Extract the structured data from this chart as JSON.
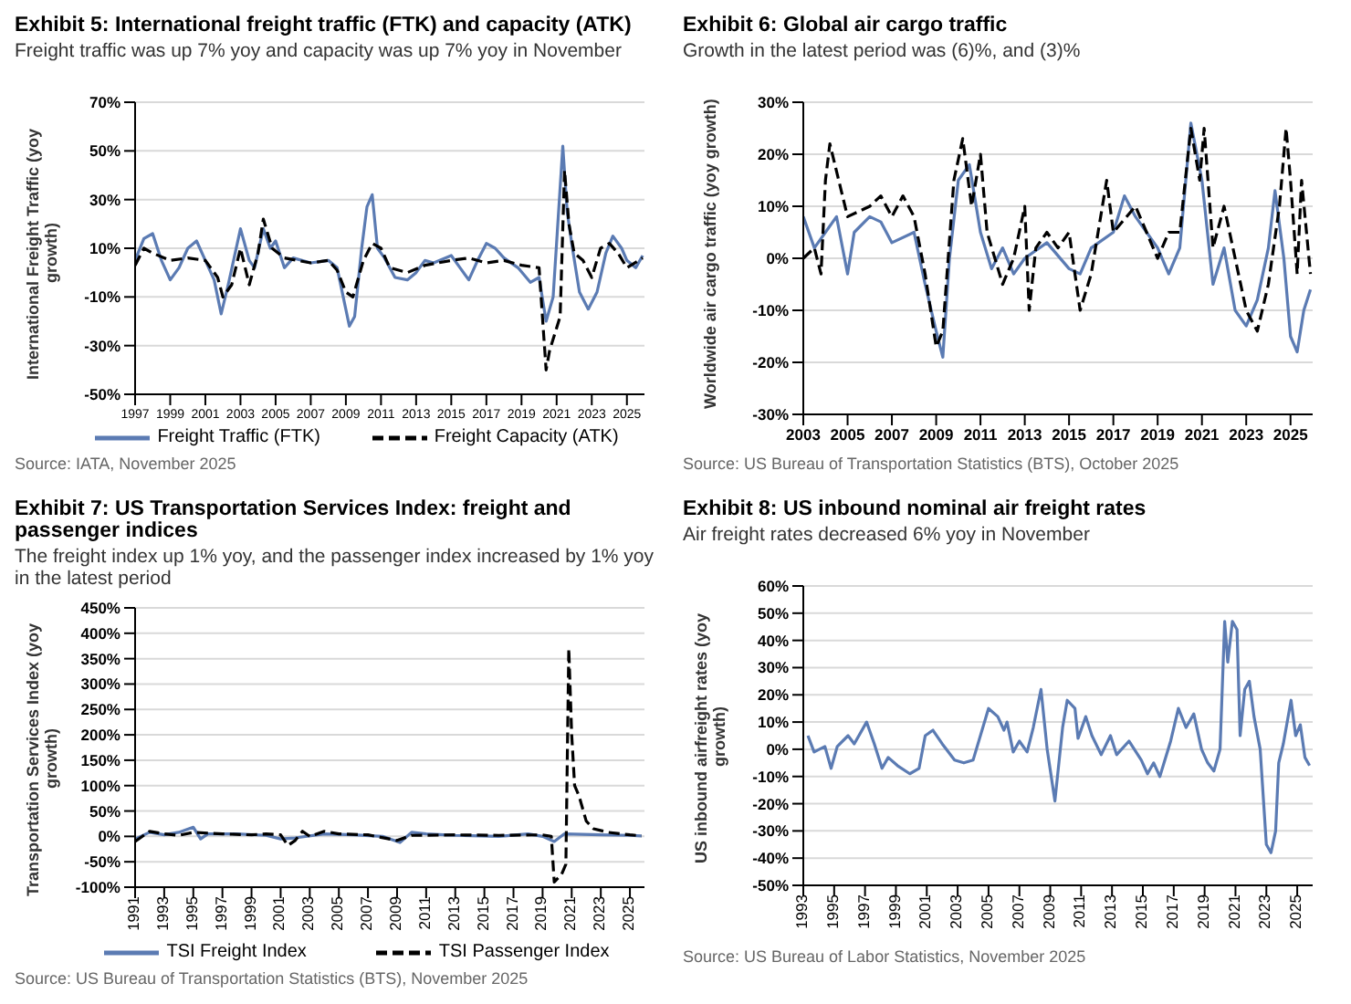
{
  "chart_data": [
    {
      "type": "line",
      "title": "Exhibit 5: International freight traffic (FTK) and capacity (ATK)",
      "subtitle": "Freight traffic was up 7% yoy and capacity was up 7% yoy in November",
      "ylabel": "International Freight Traffic (yoy growth)",
      "annotations": [
        "Source: IATA, November 2025"
      ],
      "xlim": [
        1997,
        2026
      ],
      "xticks": [
        1997,
        1999,
        2001,
        2003,
        2005,
        2007,
        2009,
        2011,
        2013,
        2015,
        2017,
        2019,
        2021,
        2023,
        2025
      ],
      "ylim": [
        -50,
        70
      ],
      "yticks": [
        {
          "value": -50,
          "label": "-50%"
        },
        {
          "value": -30,
          "label": "-30%"
        },
        {
          "value": -10,
          "label": "-10%"
        },
        {
          "value": 10,
          "label": "10%"
        },
        {
          "value": 30,
          "label": "30%"
        },
        {
          "value": 50,
          "label": "50%"
        },
        {
          "value": 70,
          "label": "70%"
        }
      ],
      "grid": "y",
      "legend": "bottom",
      "series": [
        {
          "name": "Freight Traffic (FTK)",
          "color": "#5b7bb3",
          "line_style": "solid",
          "x": [
            1997,
            1997.5,
            1998,
            1998.5,
            1999,
            1999.5,
            2000,
            2000.5,
            2001,
            2001.5,
            2001.9,
            2002.3,
            2003,
            2003.5,
            2003.8,
            2004.3,
            2004.7,
            2005,
            2005.5,
            2006,
            2007,
            2008,
            2008.5,
            2009.2,
            2009.5,
            2009.9,
            2010.2,
            2010.5,
            2010.8,
            2011.2,
            2011.8,
            2012.5,
            2013,
            2013.5,
            2014,
            2015,
            2015.5,
            2016,
            2016.5,
            2017,
            2017.5,
            2018,
            2018.8,
            2019.5,
            2020,
            2020.4,
            2020.8,
            2021.35,
            2021.6,
            2021.9,
            2022.3,
            2022.8,
            2023.3,
            2023.8,
            2024.2,
            2024.7,
            2025,
            2025.5,
            2025.9
          ],
          "values": [
            5,
            14,
            16,
            5,
            -3,
            2,
            10,
            13,
            5,
            -3,
            -17,
            -5,
            18,
            5,
            2,
            18,
            10,
            13,
            2,
            6,
            4,
            5,
            2,
            -22,
            -18,
            10,
            27,
            32,
            10,
            6,
            -2,
            -3,
            0,
            5,
            4,
            7,
            2,
            -3,
            5,
            12,
            10,
            6,
            2,
            -4,
            -2,
            -20,
            -10,
            52,
            25,
            10,
            -8,
            -15,
            -8,
            8,
            15,
            10,
            5,
            2,
            7
          ]
        },
        {
          "name": "Freight Capacity (ATK)",
          "color": "#000000",
          "line_style": "dashed",
          "x": [
            1997,
            1997.5,
            1998,
            1999,
            2000,
            2001,
            2001.7,
            2002,
            2002.5,
            2003,
            2003.5,
            2004,
            2004.3,
            2004.8,
            2005.5,
            2007,
            2008,
            2008.5,
            2009,
            2009.4,
            2010,
            2010.5,
            2011,
            2011.5,
            2012.5,
            2013.5,
            2015,
            2016,
            2017,
            2018,
            2019,
            2020,
            2020.4,
            2020.6,
            2021.2,
            2021.45,
            2021.7,
            2022,
            2022.5,
            2023,
            2023.5,
            2024,
            2024.5,
            2025,
            2025.9
          ],
          "values": [
            3,
            10,
            8,
            5,
            6,
            5,
            -2,
            -10,
            -5,
            10,
            -5,
            8,
            22,
            10,
            6,
            4,
            5,
            1,
            -8,
            -10,
            5,
            12,
            10,
            2,
            0,
            3,
            5,
            6,
            4,
            5,
            3,
            2,
            -40,
            -32,
            -18,
            42,
            20,
            8,
            5,
            -2,
            10,
            12,
            8,
            2,
            6
          ]
        }
      ]
    },
    {
      "type": "line",
      "title": "Exhibit 6: Global air cargo traffic",
      "subtitle": "Growth in the latest period was (6)%, and (3)%",
      "ylabel": "Worldwide air cargo traffic (yoy growth)",
      "annotations": [
        "Source: US Bureau of Transportation Statistics (BTS), October 2025"
      ],
      "xlim": [
        2003,
        2026
      ],
      "xticks": [
        2003,
        2005,
        2007,
        2009,
        2011,
        2013,
        2015,
        2017,
        2019,
        2021,
        2023,
        2025
      ],
      "ylim": [
        -30,
        30
      ],
      "yticks": [
        {
          "value": -30,
          "label": "-30%"
        },
        {
          "value": -20,
          "label": "-20%"
        },
        {
          "value": -10,
          "label": "-10%"
        },
        {
          "value": 0,
          "label": "0%"
        },
        {
          "value": 10,
          "label": "10%"
        },
        {
          "value": 20,
          "label": "20%"
        },
        {
          "value": 30,
          "label": "30%"
        }
      ],
      "grid": "y",
      "series": [
        {
          "color": "#5b7bb3",
          "line_style": "solid",
          "x": [
            2003,
            2003.5,
            2004,
            2004.5,
            2005,
            2005.3,
            2006,
            2006.5,
            2007,
            2008,
            2008.5,
            2009,
            2009.3,
            2009.6,
            2010,
            2010.5,
            2011,
            2011.5,
            2012,
            2012.5,
            2013,
            2014,
            2015,
            2015.5,
            2016,
            2017,
            2017.5,
            2018,
            2019,
            2019.5,
            2020,
            2020.5,
            2021,
            2021.5,
            2022,
            2022.5,
            2023,
            2023.5,
            2024,
            2024.3,
            2024.7,
            2025,
            2025.3,
            2025.6,
            2025.9
          ],
          "values": [
            8,
            2,
            5,
            8,
            -3,
            5,
            8,
            7,
            3,
            5,
            -5,
            -14,
            -19,
            0,
            15,
            18,
            5,
            -2,
            2,
            -3,
            0,
            3,
            -2,
            -3,
            2,
            5,
            12,
            8,
            2,
            -3,
            2,
            26,
            15,
            -5,
            2,
            -10,
            -13,
            -8,
            2,
            13,
            0,
            -15,
            -18,
            -10,
            -6
          ]
        },
        {
          "color": "#000000",
          "line_style": "dashed",
          "x": [
            2003,
            2003.5,
            2003.8,
            2004,
            2004.2,
            2004.6,
            2005,
            2006,
            2006.5,
            2007,
            2007.5,
            2008,
            2008.5,
            2009,
            2009.3,
            2009.8,
            2010.2,
            2010.6,
            2011,
            2011.3,
            2012,
            2012.5,
            2013,
            2013.2,
            2013.5,
            2014,
            2014.5,
            2015,
            2015.5,
            2016,
            2016.7,
            2017,
            2018,
            2018.5,
            2019,
            2019.5,
            2020,
            2020.5,
            2020.9,
            2021.1,
            2021.5,
            2022,
            2022.5,
            2023,
            2023.5,
            2024,
            2024.5,
            2024.8,
            2025,
            2025.3,
            2025.5,
            2025.9
          ],
          "values": [
            0,
            2,
            -3,
            15,
            22,
            15,
            8,
            10,
            12,
            8,
            12,
            8,
            -3,
            -17,
            -14,
            15,
            23,
            10,
            20,
            5,
            -5,
            0,
            10,
            -10,
            2,
            5,
            2,
            5,
            -10,
            -3,
            15,
            5,
            10,
            5,
            0,
            5,
            5,
            25,
            15,
            25,
            2,
            10,
            0,
            -10,
            -14,
            -5,
            10,
            25,
            15,
            -3,
            15,
            -3
          ]
        }
      ]
    },
    {
      "type": "line",
      "title": "Exhibit 7: US Transportation Services Index: freight and passenger indices",
      "subtitle": "The freight index up 1% yoy, and the passenger index increased by 1% yoy in the latest period",
      "ylabel": "Transportation Services Index (yoy growth)",
      "annotations": [
        "Source: US Bureau of Transportation Statistics (BTS), November 2025"
      ],
      "xlim": [
        1991,
        2026
      ],
      "xticks": [
        1991,
        1993,
        1995,
        1997,
        1999,
        2001,
        2003,
        2005,
        2007,
        2009,
        2011,
        2013,
        2015,
        2017,
        2019,
        2021,
        2023,
        2025
      ],
      "ylim": [
        -100,
        450
      ],
      "yticks": [
        {
          "value": -100,
          "label": "-100%"
        },
        {
          "value": -50,
          "label": "-50%"
        },
        {
          "value": 0,
          "label": "0%"
        },
        {
          "value": 50,
          "label": "50%"
        },
        {
          "value": 100,
          "label": "100%"
        },
        {
          "value": 150,
          "label": "150%"
        },
        {
          "value": 200,
          "label": "200%"
        },
        {
          "value": 250,
          "label": "250%"
        },
        {
          "value": 300,
          "label": "300%"
        },
        {
          "value": 350,
          "label": "350%"
        },
        {
          "value": 400,
          "label": "400%"
        },
        {
          "value": 450,
          "label": "450%"
        }
      ],
      "grid": "y",
      "legend": "bottom",
      "series": [
        {
          "name": "TSI Freight Index",
          "color": "#5b7bb3",
          "line_style": "solid",
          "x": [
            1991,
            1992,
            1993,
            1994,
            1995,
            1995.5,
            1996,
            1998,
            2000,
            2001,
            2002,
            2004,
            2006,
            2008,
            2009.2,
            2010,
            2011,
            2013,
            2016,
            2018,
            2019,
            2019.8,
            2020.5,
            2023,
            2025,
            2025.8
          ],
          "values": [
            -5,
            8,
            3,
            8,
            18,
            -5,
            5,
            5,
            2,
            -5,
            -3,
            5,
            3,
            0,
            -12,
            8,
            5,
            2,
            0,
            5,
            0,
            -10,
            5,
            3,
            2,
            1
          ]
        },
        {
          "name": "TSI Passenger Index",
          "color": "#000000",
          "line_style": "dashed",
          "x": [
            1991,
            1992,
            1993,
            1994,
            1995,
            1997,
            1999,
            2000,
            2001,
            2001.5,
            2002,
            2002.5,
            2003,
            2004,
            2005,
            2007,
            2009,
            2010,
            2013,
            2016,
            2019,
            2019.6,
            2019.8,
            2020.3,
            2020.6,
            2020.8,
            2021,
            2021.2,
            2021.5,
            2022,
            2022.5,
            2023.5,
            2025,
            2025.8
          ],
          "values": [
            -10,
            10,
            5,
            2,
            8,
            5,
            3,
            5,
            3,
            -18,
            -8,
            10,
            0,
            10,
            5,
            3,
            -8,
            2,
            3,
            2,
            3,
            0,
            -90,
            -75,
            -55,
            370,
            200,
            100,
            80,
            30,
            15,
            8,
            3,
            1
          ]
        }
      ]
    },
    {
      "type": "line",
      "title": "Exhibit 8: US inbound nominal air freight rates",
      "subtitle": "Air freight rates decreased 6% yoy in November",
      "ylabel": "US inbound airfreight rates (yoy growth)",
      "annotations": [
        "Source: US Bureau of Labor Statistics, November 2025"
      ],
      "xlim": [
        1993,
        2026
      ],
      "xticks": [
        1993,
        1995,
        1997,
        1999,
        2001,
        2003,
        2005,
        2007,
        2009,
        2011,
        2013,
        2015,
        2017,
        2019,
        2021,
        2023,
        2025
      ],
      "ylim": [
        -50,
        60
      ],
      "yticks": [
        {
          "value": -50,
          "label": "-50%"
        },
        {
          "value": -40,
          "label": "-40%"
        },
        {
          "value": -30,
          "label": "-30%"
        },
        {
          "value": -20,
          "label": "-20%"
        },
        {
          "value": -10,
          "label": "-10%"
        },
        {
          "value": 0,
          "label": "0%"
        },
        {
          "value": 10,
          "label": "10%"
        },
        {
          "value": 20,
          "label": "20%"
        },
        {
          "value": 30,
          "label": "30%"
        },
        {
          "value": 40,
          "label": "40%"
        },
        {
          "value": 50,
          "label": "50%"
        },
        {
          "value": 60,
          "label": "60%"
        }
      ],
      "grid": "y",
      "series": [
        {
          "color": "#5b7bb3",
          "line_style": "solid",
          "x": [
            1993.3,
            1993.7,
            1994.4,
            1994.8,
            1995.2,
            1995.9,
            1996.3,
            1997.1,
            1997.6,
            1998.1,
            1998.5,
            1999.1,
            1999.9,
            2000.5,
            2000.9,
            2001.4,
            2002,
            2002.8,
            2003.4,
            2004,
            2005,
            2005.6,
            2006,
            2006.2,
            2006.6,
            2007,
            2007.5,
            2007.9,
            2008.4,
            2008.8,
            2009.3,
            2009.8,
            2010.1,
            2010.6,
            2010.8,
            2011.3,
            2011.7,
            2012.3,
            2012.9,
            2013.3,
            2014.1,
            2014.9,
            2015.3,
            2015.7,
            2016.1,
            2016.8,
            2017.3,
            2017.8,
            2018.3,
            2018.8,
            2019.2,
            2019.6,
            2020,
            2020.3,
            2020.5,
            2020.8,
            2021.1,
            2021.3,
            2021.6,
            2021.9,
            2022.2,
            2022.6,
            2023,
            2023.3,
            2023.6,
            2023.8,
            2024.1,
            2024.6,
            2024.9,
            2025.2,
            2025.5,
            2025.8
          ],
          "values": [
            5,
            -1,
            1,
            -7,
            1,
            5,
            2,
            10,
            2,
            -7,
            -3,
            -6,
            -9,
            -7,
            5,
            7,
            2,
            -4,
            -5,
            -4,
            15,
            12,
            7,
            10,
            -1,
            3,
            -1,
            8,
            22,
            0,
            -19,
            8,
            18,
            15,
            4,
            12,
            5,
            -2,
            5,
            -2,
            3,
            -4,
            -9,
            -5,
            -10,
            3,
            15,
            8,
            13,
            0,
            -5,
            -8,
            0,
            47,
            32,
            47,
            44,
            5,
            22,
            25,
            12,
            0,
            -35,
            -38,
            -30,
            -5,
            2,
            18,
            5,
            9,
            -3,
            -6
          ]
        }
      ]
    }
  ]
}
